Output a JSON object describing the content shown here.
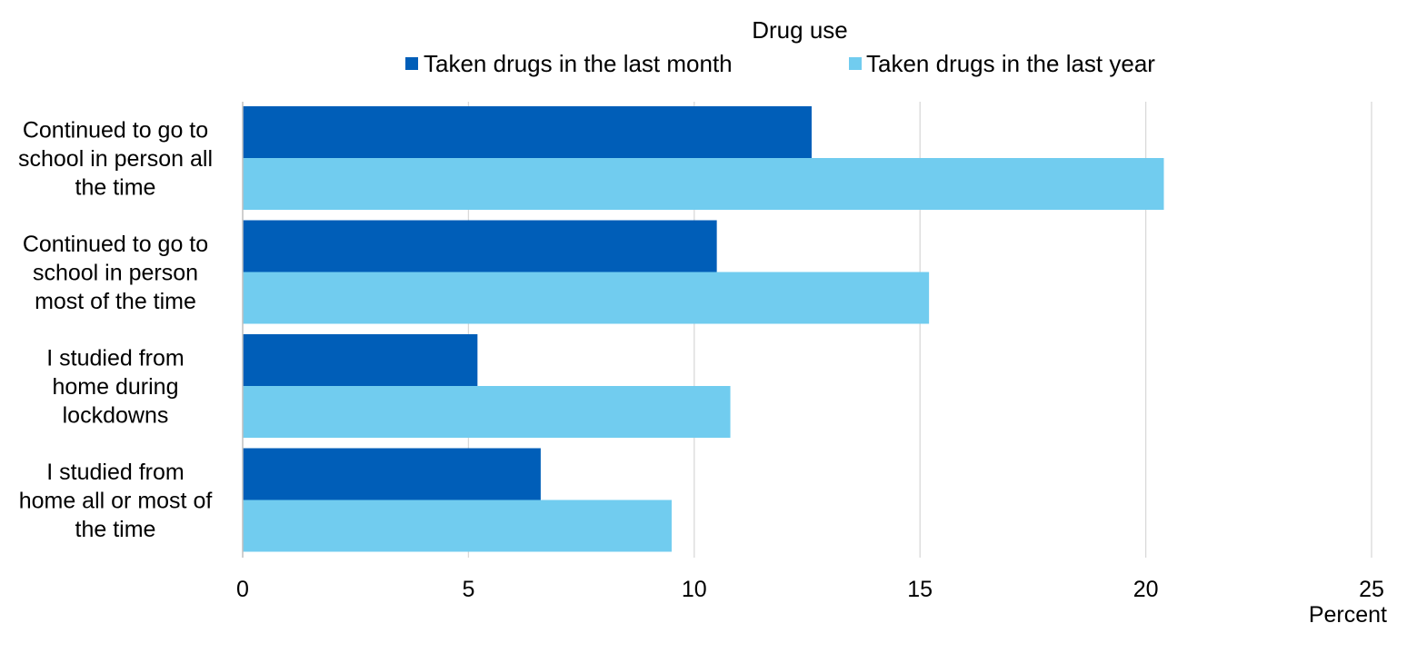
{
  "chart_data": {
    "type": "bar",
    "orientation": "horizontal",
    "legend_title": "Drug use",
    "legend_position": "top",
    "categories": [
      [
        "Continued to go to",
        "school in person all",
        "the time"
      ],
      [
        "Continued to go to",
        "school in person",
        "most of the time"
      ],
      [
        "I studied from",
        "home during",
        "lockdowns"
      ],
      [
        "I studied from",
        "home all or most of",
        "the time"
      ]
    ],
    "series": [
      {
        "name": "Taken drugs in the last month",
        "color": "#005EB8",
        "values": [
          12.6,
          10.5,
          5.2,
          6.6
        ]
      },
      {
        "name": "Taken drugs in the last year",
        "color": "#71CCEF",
        "values": [
          20.4,
          15.2,
          10.8,
          9.5
        ]
      }
    ],
    "xlim": [
      0,
      25
    ],
    "xticks": [
      "0",
      "5",
      "10",
      "15",
      "20",
      "25"
    ],
    "xticks_values": [
      0,
      5,
      10,
      15,
      20,
      25
    ],
    "xlabel": "Percent",
    "grid": true,
    "gridline_color": "#D9D9D9",
    "axis_color": "#BFBFBF"
  }
}
